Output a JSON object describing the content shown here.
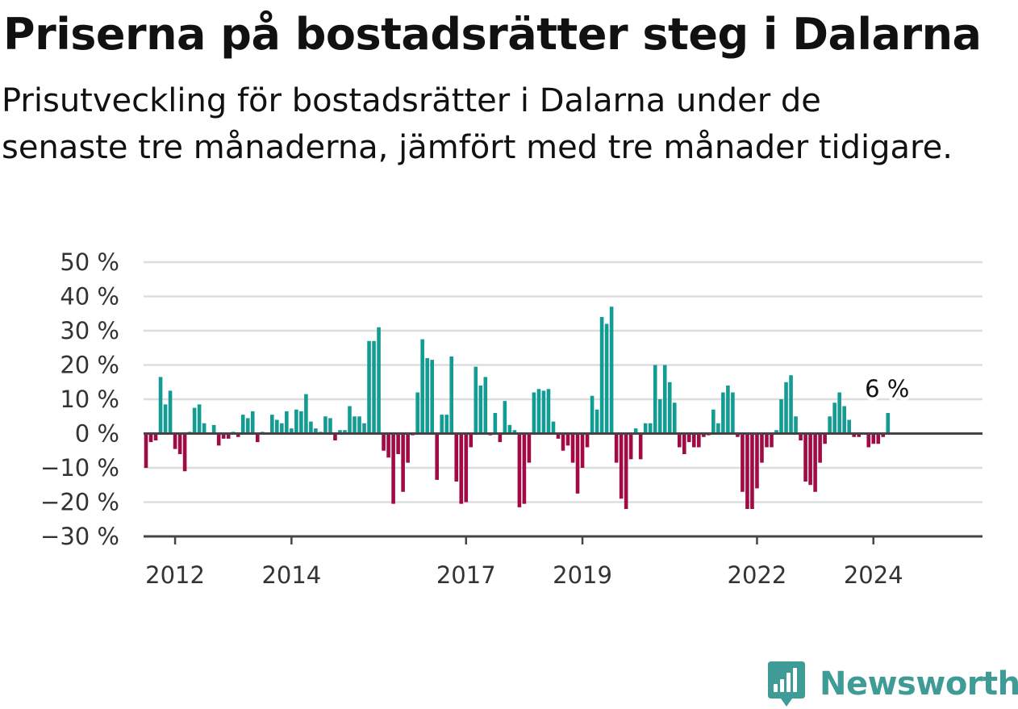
{
  "header": {
    "title": "Priserna på bostadsrätter steg i Dalarna",
    "subtitle": "Prisutveckling för bostadsrätter i Dalarna under de senaste tre månaderna, jämfört med tre månader tidigare."
  },
  "colors": {
    "positive": "#139c93",
    "negative": "#a10b45",
    "gridline": "#dddddd",
    "axis": "#444444",
    "brand": "#3f9b95"
  },
  "brand": {
    "name": "Newsworthy",
    "icon": "bar-chart-badge-icon"
  },
  "chart_data": {
    "type": "bar",
    "xlabel": "",
    "ylabel": "",
    "ylim": [
      -30,
      50
    ],
    "y_ticks": [
      50,
      40,
      30,
      20,
      10,
      0,
      -10,
      -20,
      -30
    ],
    "y_tick_labels": [
      "50 %",
      "40 %",
      "30 %",
      "20 %",
      "10 %",
      "0 %",
      "−10 %",
      "−20 %",
      "−30 %"
    ],
    "x_ticks": [
      "2012",
      "2014",
      "2017",
      "2019",
      "2022",
      "2024"
    ],
    "x_start": "2011-07",
    "x_end": "2025-11",
    "grid": true,
    "last_value_label": "6 %",
    "series": [
      {
        "values": [
          -10,
          -2.5,
          -2,
          16.5,
          8.5,
          12.5,
          -4.5,
          -6,
          -11,
          0.5,
          7.5,
          8.5,
          3,
          0,
          2.5,
          -3.5,
          -1.5,
          -1.5,
          0.5,
          -1,
          5.5,
          4.5,
          6.5,
          -2.5,
          0.5,
          0,
          5.5,
          4,
          3,
          6.5,
          1.5,
          7,
          6.5,
          11.5,
          3.5,
          1.5,
          0.5,
          5,
          4.5,
          -2,
          1,
          1,
          8,
          5,
          5,
          3,
          27,
          27,
          31,
          -5,
          -7,
          -20.5,
          -6,
          -17,
          -8.5,
          -0.5,
          12,
          27.5,
          22,
          21.5,
          -13.5,
          5.5,
          5.5,
          22.5,
          -14,
          -20.5,
          -20,
          -4,
          19.5,
          14,
          16.5,
          -0.5,
          6,
          -2.5,
          9.5,
          2.5,
          1,
          -21.5,
          -20.5,
          -8.5,
          12,
          13,
          12.5,
          13,
          3.5,
          -1.5,
          -5,
          -3.5,
          -8.5,
          -17.5,
          -10,
          -4,
          11,
          7,
          34,
          32,
          37,
          -8.5,
          -19,
          -22,
          -7.5,
          1.5,
          -7.5,
          3,
          3,
          20,
          10,
          20,
          15,
          9,
          -4,
          -6,
          -2.5,
          -4,
          -4,
          -1,
          -0.5,
          7,
          3,
          12,
          14,
          12,
          -1,
          -17,
          -22,
          -22,
          -16,
          -8.5,
          -4,
          -4,
          1,
          10,
          15,
          17,
          5,
          -2,
          -14,
          -15,
          -17,
          -8.5,
          -3,
          5,
          9,
          12,
          8,
          4,
          -1,
          -1,
          0,
          -4,
          -3,
          -3,
          -1,
          6
        ]
      }
    ]
  }
}
